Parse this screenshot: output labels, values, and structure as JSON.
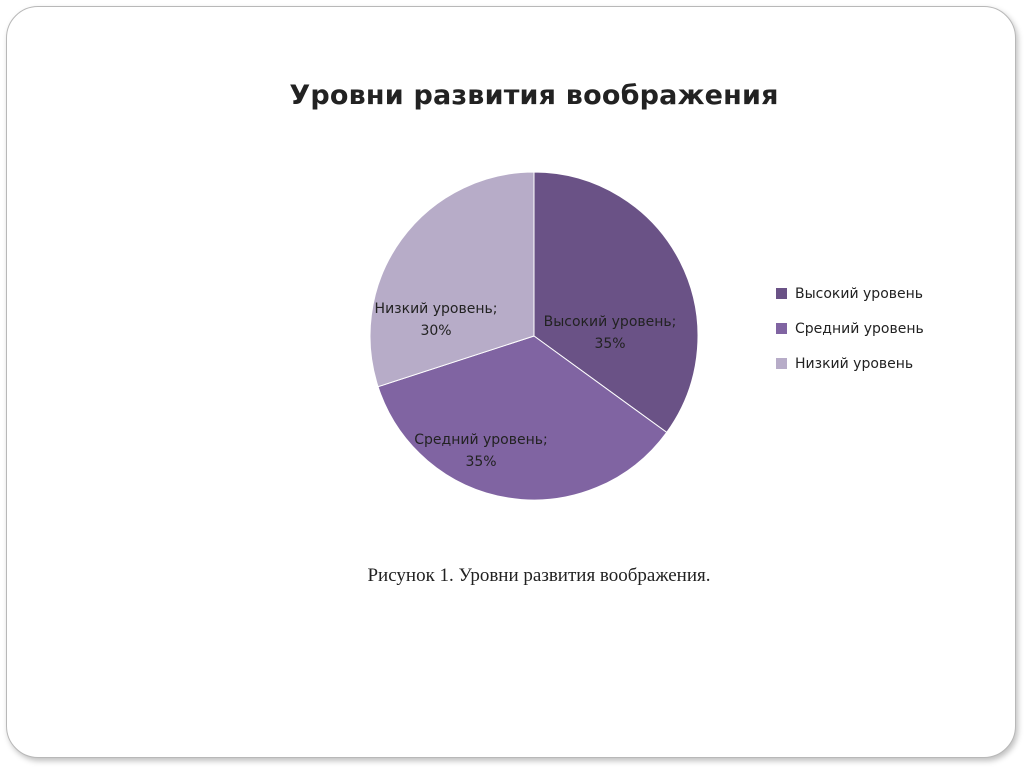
{
  "chart_data": {
    "type": "pie",
    "title": "Уровни развития воображения",
    "categories": [
      "Высокий уровень",
      "Средний уровень",
      "Низкий уровень"
    ],
    "values": [
      35,
      35,
      30
    ],
    "data_labels": [
      [
        "Высокий уровень;",
        "35%"
      ],
      [
        "Средний уровень;",
        "35%"
      ],
      [
        "Низкий уровень;",
        "30%"
      ]
    ],
    "colors": [
      "#6a5286",
      "#8064a2",
      "#b7acc8"
    ],
    "legend_position": "right"
  },
  "caption": "Рисунок 1. Уровни развития воображения."
}
